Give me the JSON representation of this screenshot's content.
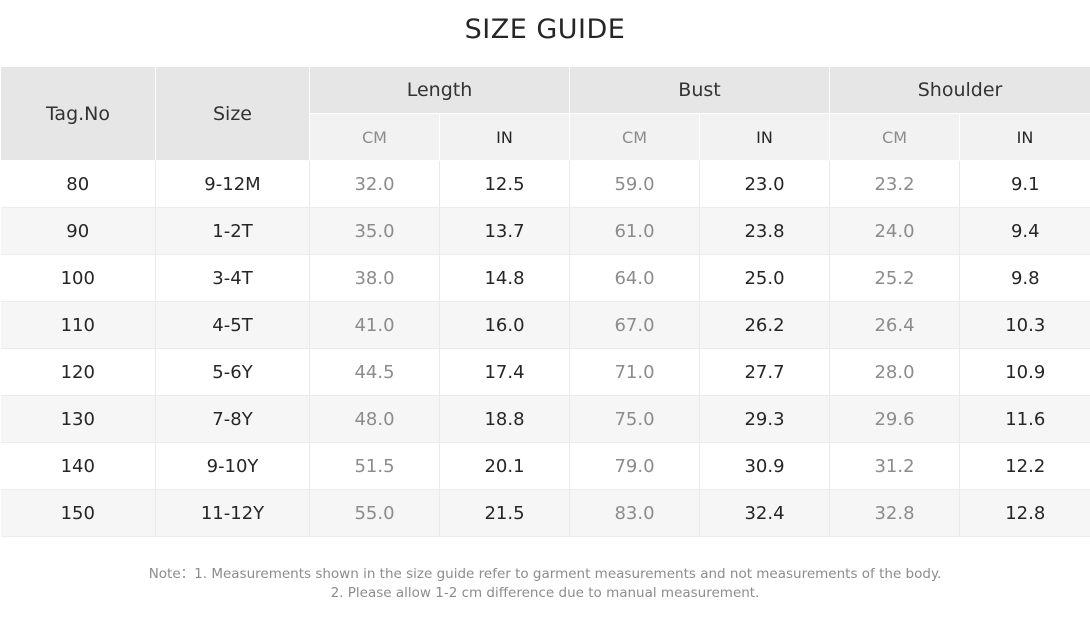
{
  "title": "SIZE GUIDE",
  "headers": {
    "tag_no": "Tag.No",
    "size": "Size",
    "groups": [
      "Length",
      "Bust",
      "Shoulder"
    ],
    "unit_cm": "CM",
    "unit_in": "IN"
  },
  "rows": [
    {
      "tag": "80",
      "size": "9-12M",
      "length_cm": "32.0",
      "length_in": "12.5",
      "bust_cm": "59.0",
      "bust_in": "23.0",
      "shoulder_cm": "23.2",
      "shoulder_in": "9.1"
    },
    {
      "tag": "90",
      "size": "1-2T",
      "length_cm": "35.0",
      "length_in": "13.7",
      "bust_cm": "61.0",
      "bust_in": "23.8",
      "shoulder_cm": "24.0",
      "shoulder_in": "9.4"
    },
    {
      "tag": "100",
      "size": "3-4T",
      "length_cm": "38.0",
      "length_in": "14.8",
      "bust_cm": "64.0",
      "bust_in": "25.0",
      "shoulder_cm": "25.2",
      "shoulder_in": "9.8"
    },
    {
      "tag": "110",
      "size": "4-5T",
      "length_cm": "41.0",
      "length_in": "16.0",
      "bust_cm": "67.0",
      "bust_in": "26.2",
      "shoulder_cm": "26.4",
      "shoulder_in": "10.3"
    },
    {
      "tag": "120",
      "size": "5-6Y",
      "length_cm": "44.5",
      "length_in": "17.4",
      "bust_cm": "71.0",
      "bust_in": "27.7",
      "shoulder_cm": "28.0",
      "shoulder_in": "10.9"
    },
    {
      "tag": "130",
      "size": "7-8Y",
      "length_cm": "48.0",
      "length_in": "18.8",
      "bust_cm": "75.0",
      "bust_in": "29.3",
      "shoulder_cm": "29.6",
      "shoulder_in": "11.6"
    },
    {
      "tag": "140",
      "size": "9-10Y",
      "length_cm": "51.5",
      "length_in": "20.1",
      "bust_cm": "79.0",
      "bust_in": "30.9",
      "shoulder_cm": "31.2",
      "shoulder_in": "12.2"
    },
    {
      "tag": "150",
      "size": "11-12Y",
      "length_cm": "55.0",
      "length_in": "21.5",
      "bust_cm": "83.0",
      "bust_in": "32.4",
      "shoulder_cm": "32.8",
      "shoulder_in": "12.8"
    }
  ],
  "notes": {
    "line1": "Note：1. Measurements shown in the size guide refer to garment measurements and not measurements of the body.",
    "line2": "2. Please allow 1-2 cm difference due to manual measurement."
  },
  "colors": {
    "header_bg": "#e6e6e6",
    "subheader_bg": "#f2f2f2",
    "alt_row_bg": "#f6f6f6",
    "cm_text": "#8c8c8c",
    "in_text": "#262626"
  }
}
